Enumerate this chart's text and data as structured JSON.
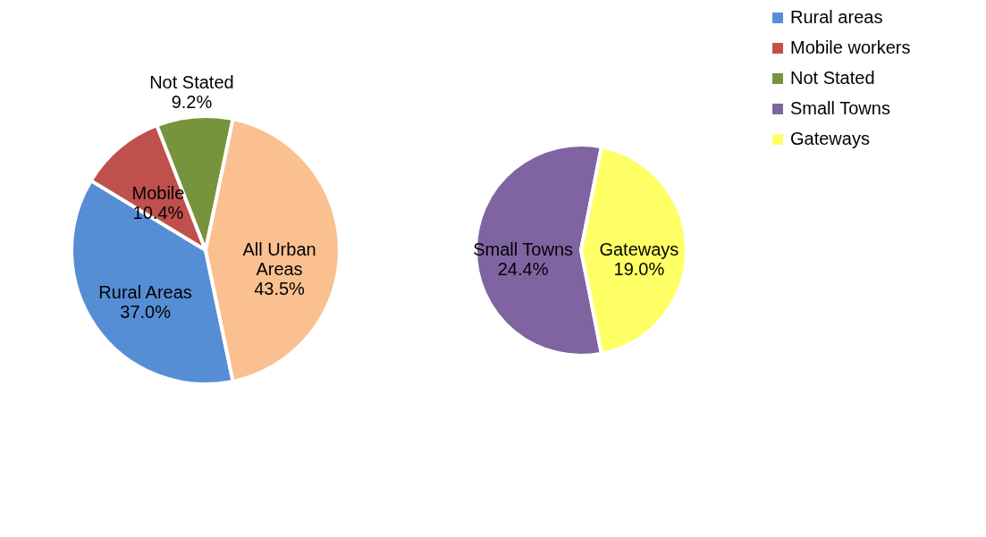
{
  "chart_data": [
    {
      "type": "pie",
      "categories": [
        "Rural areas",
        "Mobile workers",
        "Not Stated",
        null
      ],
      "values": [
        37.0,
        10.4,
        9.2,
        43.5
      ],
      "colors": [
        "#558ed5",
        "#c0504d",
        "#77933c",
        "#fac090"
      ],
      "value_labels": [
        "Rural Areas\n37.0%",
        "Mobile\n10.4%",
        "Not Stated\n9.2%",
        "All Urban\nAreas\n43.5%"
      ],
      "legend": "right"
    },
    {
      "type": "pie",
      "categories": [
        "Small Towns",
        "Gateways"
      ],
      "values": [
        24.4,
        19.0
      ],
      "colors": [
        "#8064a2",
        "#ffff66"
      ],
      "value_labels": [
        "Small Towns\n24.4%",
        "Gateways\n19.0%"
      ],
      "legend": "right"
    }
  ]
}
